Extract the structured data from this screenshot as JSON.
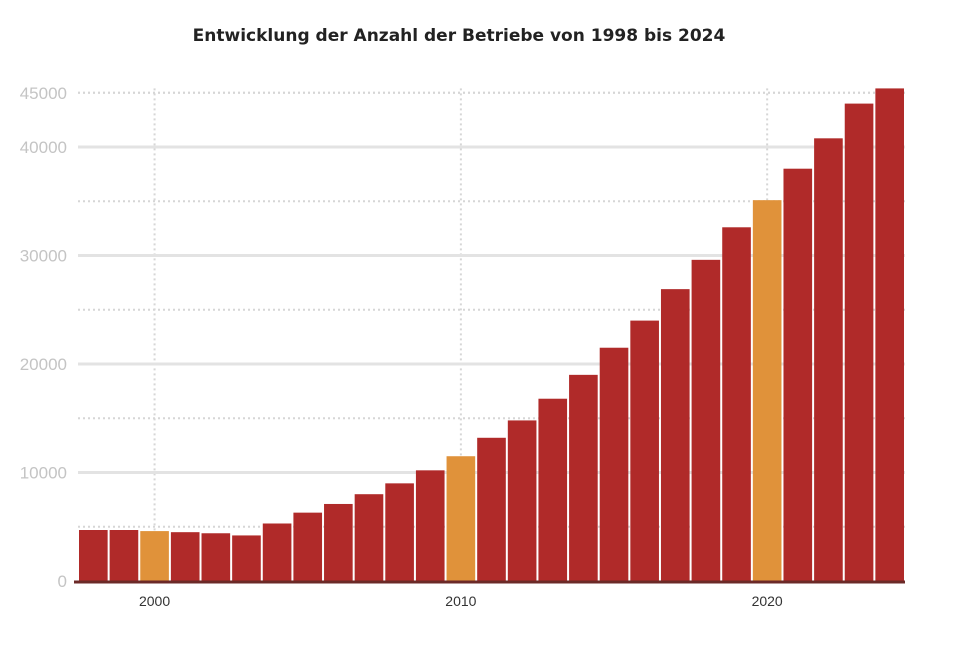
{
  "chart_data": {
    "type": "bar",
    "title": "Entwicklung der  Anzahl der Betriebe von 1998 bis 2024",
    "xlabel": "",
    "ylabel": "",
    "categories": [
      1998,
      1999,
      2000,
      2001,
      2002,
      2003,
      2004,
      2005,
      2006,
      2007,
      2008,
      2009,
      2010,
      2011,
      2012,
      2013,
      2014,
      2015,
      2016,
      2017,
      2018,
      2019,
      2020,
      2021,
      2022,
      2023,
      2024
    ],
    "values": [
      4700,
      4700,
      4600,
      4500,
      4400,
      4200,
      5300,
      6300,
      7100,
      8000,
      9000,
      10200,
      11500,
      13200,
      14800,
      16800,
      19000,
      21500,
      24000,
      26900,
      29600,
      32600,
      35100,
      38000,
      40800,
      44000,
      45400
    ],
    "highlight_color": "#e0923a",
    "bar_color": "#b02a29",
    "highlighted_categories": [
      2000,
      2010,
      2020
    ],
    "ylim": [
      0,
      46000
    ],
    "y_ticks": [
      0,
      10000,
      20000,
      30000,
      40000,
      45000
    ],
    "y_tick_labels": [
      "0",
      "10000",
      "20000",
      "30000",
      "40000",
      "45000"
    ],
    "x_ticks": [
      2000,
      2010,
      2020
    ],
    "x_tick_labels": [
      "2000",
      "2010",
      "2020"
    ],
    "grid": true
  }
}
